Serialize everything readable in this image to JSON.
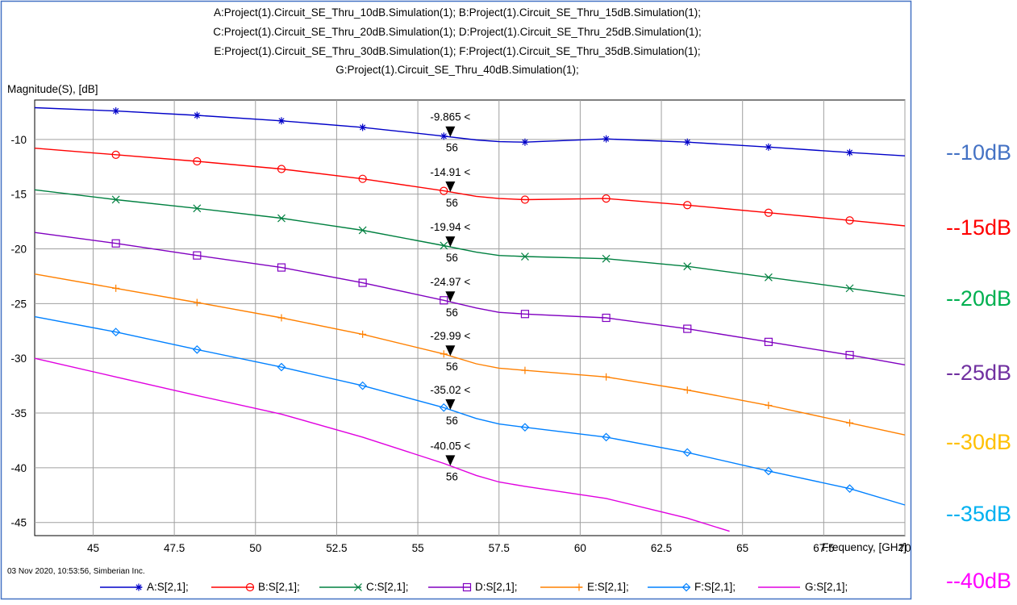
{
  "header_lines": [
    "A:Project(1).Circuit_SE_Thru_10dB.Simulation(1); B:Project(1).Circuit_SE_Thru_15dB.Simulation(1);",
    "C:Project(1).Circuit_SE_Thru_20dB.Simulation(1); D:Project(1).Circuit_SE_Thru_25dB.Simulation(1);",
    "E:Project(1).Circuit_SE_Thru_30dB.Simulation(1); F:Project(1).Circuit_SE_Thru_35dB.Simulation(1);",
    "G:Project(1).Circuit_SE_Thru_40dB.Simulation(1);"
  ],
  "footer_text": "03 Nov 2020, 10:53:56, Simberian Inc.",
  "side_labels": [
    {
      "text": "--10dB",
      "color": "#4472c4"
    },
    {
      "text": "--15dB",
      "color": "#ff0000"
    },
    {
      "text": "--20dB",
      "color": "#00b050"
    },
    {
      "text": "--25dB",
      "color": "#7030a0"
    },
    {
      "text": "--30dB",
      "color": "#ffc000"
    },
    {
      "text": "--35dB",
      "color": "#00b0f0"
    },
    {
      "text": "--40dB",
      "color": "#ff00ff"
    }
  ],
  "chart_data": {
    "type": "line",
    "ylabel": "Magnitude(S), [dB]",
    "xlabel": "Frequency, [GHz]",
    "xlim": [
      43.2,
      70
    ],
    "ylim": [
      -46.2,
      -6.4
    ],
    "xticks": [
      45,
      47.5,
      50,
      52.5,
      55,
      57.5,
      60,
      62.5,
      65,
      67.5,
      70
    ],
    "xtick_labels": [
      "45",
      "47.5",
      "50",
      "52.5",
      "55",
      "57.5",
      "60",
      "62.5",
      "65",
      "67.5",
      "70"
    ],
    "yticks": [
      -10,
      -15,
      -20,
      -25,
      -30,
      -35,
      -40,
      -45
    ],
    "ytick_labels": [
      "-10",
      "-15",
      "-20",
      "-25",
      "-30",
      "-35",
      "-40",
      "-45"
    ],
    "grid": true,
    "legend_position": "bottom",
    "marker_x": 56,
    "series": [
      {
        "name": "A:S[2,1];",
        "color": "#0000c8",
        "marker": "star",
        "x": [
          43.2,
          45.7,
          48.2,
          50.8,
          53.3,
          55.8,
          56.8,
          57.5,
          58.3,
          60.8,
          63.3,
          65.8,
          68.3,
          70
        ],
        "y": [
          -7.1,
          -7.4,
          -7.8,
          -8.3,
          -8.9,
          -9.7,
          -10.05,
          -10.2,
          -10.25,
          -9.95,
          -10.25,
          -10.7,
          -11.2,
          -11.5
        ],
        "marker_values": [
          "-9.865 <",
          "56"
        ]
      },
      {
        "name": "B:S[2,1];",
        "color": "#ff0000",
        "marker": "circle",
        "x": [
          43.2,
          45.7,
          48.2,
          50.8,
          53.3,
          55.8,
          56.8,
          57.5,
          58.3,
          60.8,
          63.3,
          65.8,
          68.3,
          70
        ],
        "y": [
          -10.8,
          -11.4,
          -12.0,
          -12.7,
          -13.6,
          -14.7,
          -15.2,
          -15.4,
          -15.5,
          -15.4,
          -16.0,
          -16.7,
          -17.4,
          -17.9
        ],
        "marker_values": [
          "-14.91 <",
          "56"
        ]
      },
      {
        "name": "C:S[2,1];",
        "color": "#008040",
        "marker": "x",
        "x": [
          43.2,
          45.7,
          48.2,
          50.8,
          53.3,
          55.8,
          56.8,
          57.5,
          58.3,
          60.8,
          63.3,
          65.8,
          68.3,
          70
        ],
        "y": [
          -14.6,
          -15.5,
          -16.3,
          -17.2,
          -18.3,
          -19.7,
          -20.3,
          -20.6,
          -20.7,
          -20.9,
          -21.6,
          -22.6,
          -23.6,
          -24.3
        ],
        "marker_values": [
          "-19.94 <",
          "56"
        ]
      },
      {
        "name": "D:S[2,1];",
        "color": "#8000c0",
        "marker": "square",
        "x": [
          43.2,
          45.7,
          48.2,
          50.8,
          53.3,
          55.8,
          56.8,
          57.5,
          58.3,
          60.8,
          63.3,
          65.8,
          68.3,
          70
        ],
        "y": [
          -18.5,
          -19.5,
          -20.6,
          -21.7,
          -23.1,
          -24.7,
          -25.4,
          -25.8,
          -25.95,
          -26.3,
          -27.3,
          -28.5,
          -29.7,
          -30.6
        ],
        "marker_values": [
          "-24.97 <",
          "56"
        ]
      },
      {
        "name": "E:S[2,1];",
        "color": "#ff8000",
        "marker": "plus",
        "x": [
          43.2,
          45.7,
          48.2,
          50.8,
          53.3,
          55.8,
          56.8,
          57.5,
          58.3,
          60.8,
          63.3,
          65.8,
          68.3,
          70
        ],
        "y": [
          -22.3,
          -23.6,
          -24.9,
          -26.3,
          -27.8,
          -29.6,
          -30.5,
          -30.9,
          -31.1,
          -31.7,
          -32.9,
          -34.3,
          -35.9,
          -37.0
        ],
        "marker_values": [
          "-29.99 <",
          "56"
        ]
      },
      {
        "name": "F:S[2,1];",
        "color": "#0080ff",
        "marker": "diamond",
        "x": [
          43.2,
          45.7,
          48.2,
          50.8,
          53.3,
          55.8,
          56.8,
          57.5,
          58.3,
          60.8,
          63.3,
          65.8,
          68.3,
          70
        ],
        "y": [
          -26.2,
          -27.6,
          -29.2,
          -30.8,
          -32.5,
          -34.5,
          -35.5,
          -36.0,
          -36.3,
          -37.2,
          -38.6,
          -40.3,
          -41.9,
          -43.4
        ],
        "marker_values": [
          "-35.02 <",
          "56"
        ]
      },
      {
        "name": "G:S[2,1];",
        "color": "#e000e0",
        "marker": "none",
        "x": [
          43.2,
          45.7,
          48.2,
          50.8,
          53.3,
          55.8,
          56.8,
          57.5,
          58.3,
          60.8,
          63.3,
          64.6
        ],
        "y": [
          -30.0,
          -31.7,
          -33.4,
          -35.1,
          -37.2,
          -39.6,
          -40.7,
          -41.3,
          -41.7,
          -42.8,
          -44.6,
          -45.8
        ],
        "marker_values": [
          "-40.05 <",
          "56"
        ]
      }
    ]
  }
}
